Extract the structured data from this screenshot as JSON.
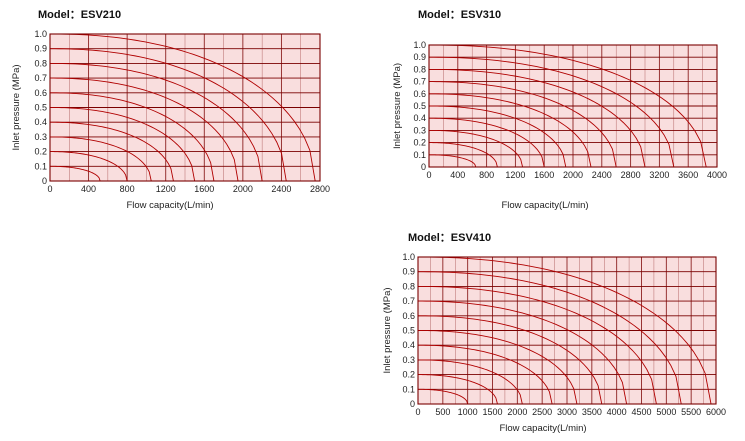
{
  "chart_data": [
    {
      "type": "line",
      "title": "Model：ESV210",
      "xlabel": "Flow capacity(L/min)",
      "ylabel": "Inlet pressure (MPa)",
      "xlim": [
        0,
        2800
      ],
      "ylim": [
        0,
        1.0
      ],
      "x_ticks": [
        "0",
        "400",
        "800",
        "1200",
        "1600",
        "2000",
        "2400",
        "2800"
      ],
      "y_ticks": [
        "0",
        "0.1",
        "0.2",
        "0.3",
        "0.4",
        "0.5",
        "0.6",
        "0.7",
        "0.8",
        "0.9",
        "1.0"
      ],
      "grid": true,
      "series": [
        {
          "inlet": 0.1,
          "qmax": 520
        },
        {
          "inlet": 0.2,
          "qmax": 800
        },
        {
          "inlet": 0.3,
          "qmax": 1050
        },
        {
          "inlet": 0.4,
          "qmax": 1280
        },
        {
          "inlet": 0.5,
          "qmax": 1500
        },
        {
          "inlet": 0.6,
          "qmax": 1700
        },
        {
          "inlet": 0.7,
          "qmax": 1950
        },
        {
          "inlet": 0.8,
          "qmax": 2200
        },
        {
          "inlet": 0.9,
          "qmax": 2450
        },
        {
          "inlet": 1.0,
          "qmax": 2750
        }
      ]
    },
    {
      "type": "line",
      "title": "Model：ESV310",
      "xlabel": "Flow capacity(L/min)",
      "ylabel": "Inlet pressure (MPa)",
      "xlim": [
        0,
        4000
      ],
      "ylim": [
        0,
        1.0
      ],
      "x_ticks": [
        "0",
        "400",
        "800",
        "1200",
        "1600",
        "2000",
        "2400",
        "2800",
        "3200",
        "3600",
        "4000"
      ],
      "y_ticks": [
        "0",
        "0.1",
        "0.2",
        "0.3",
        "0.4",
        "0.5",
        "0.6",
        "0.7",
        "0.8",
        "0.9",
        "1.0"
      ],
      "grid": true,
      "series": [
        {
          "inlet": 0.1,
          "qmax": 650
        },
        {
          "inlet": 0.2,
          "qmax": 950
        },
        {
          "inlet": 0.3,
          "qmax": 1300
        },
        {
          "inlet": 0.4,
          "qmax": 1600
        },
        {
          "inlet": 0.5,
          "qmax": 1900
        },
        {
          "inlet": 0.6,
          "qmax": 2250
        },
        {
          "inlet": 0.7,
          "qmax": 2600
        },
        {
          "inlet": 0.8,
          "qmax": 3000
        },
        {
          "inlet": 0.9,
          "qmax": 3400
        },
        {
          "inlet": 1.0,
          "qmax": 3850
        }
      ]
    },
    {
      "type": "line",
      "title": "Model：ESV410",
      "xlabel": "Flow capacity(L/min)",
      "ylabel": "Inlet pressure (MPa)",
      "xlim": [
        0,
        6000
      ],
      "ylim": [
        0,
        1.0
      ],
      "x_ticks": [
        "0",
        "500",
        "1000",
        "1500",
        "2000",
        "2500",
        "3000",
        "3500",
        "4000",
        "4500",
        "5000",
        "5500",
        "6000"
      ],
      "y_ticks": [
        "0",
        "0.1",
        "0.2",
        "0.3",
        "0.4",
        "0.5",
        "0.6",
        "0.7",
        "0.8",
        "0.9",
        "1.0"
      ],
      "grid": true,
      "series": [
        {
          "inlet": 0.1,
          "qmax": 1000
        },
        {
          "inlet": 0.2,
          "qmax": 1600
        },
        {
          "inlet": 0.3,
          "qmax": 2100
        },
        {
          "inlet": 0.4,
          "qmax": 2700
        },
        {
          "inlet": 0.5,
          "qmax": 3200
        },
        {
          "inlet": 0.6,
          "qmax": 3700
        },
        {
          "inlet": 0.7,
          "qmax": 4200
        },
        {
          "inlet": 0.8,
          "qmax": 4800
        },
        {
          "inlet": 0.9,
          "qmax": 5300
        },
        {
          "inlet": 1.0,
          "qmax": 5900
        }
      ]
    }
  ],
  "colors": {
    "plot_fill": "#f9dede",
    "grid_line": "#7a0000",
    "curve": "#b00000",
    "axis_text": "#222222",
    "title_text": "#111111"
  }
}
